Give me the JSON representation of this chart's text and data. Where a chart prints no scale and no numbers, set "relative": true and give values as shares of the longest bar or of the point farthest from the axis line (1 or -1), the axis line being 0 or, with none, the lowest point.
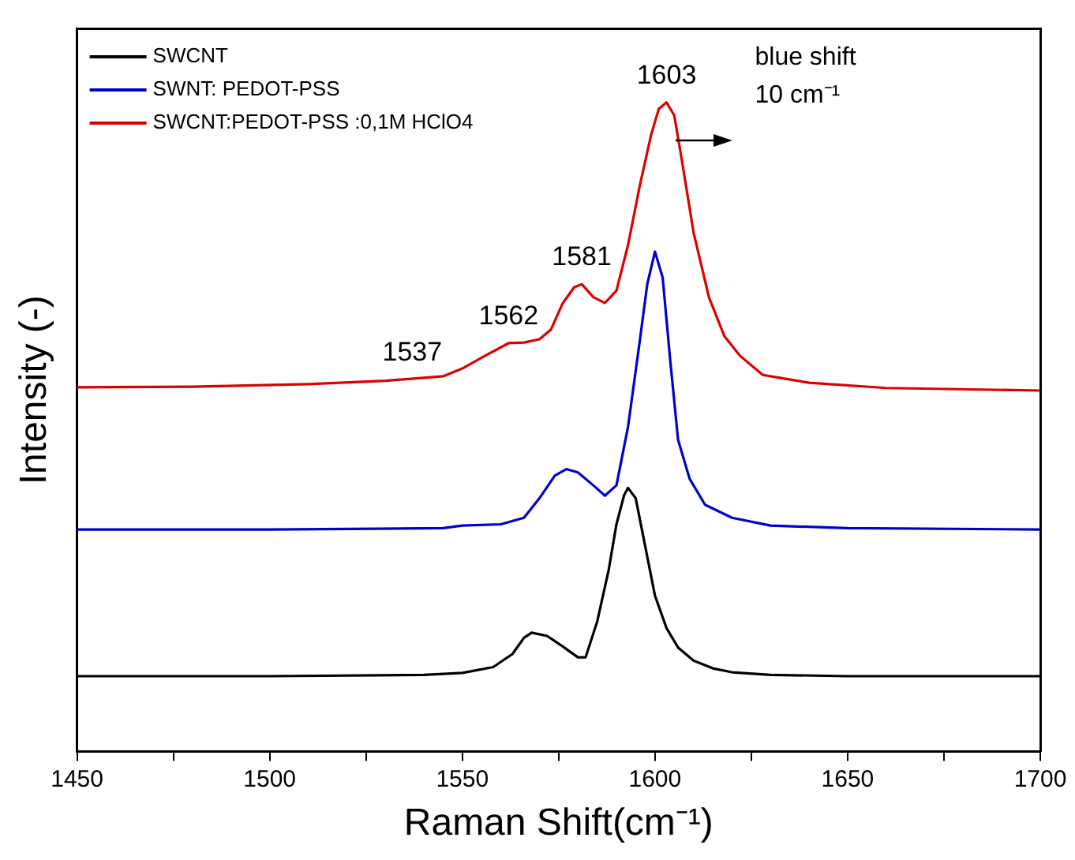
{
  "chart_data": {
    "type": "line",
    "relative": true,
    "xlabel": "Raman Shift(cm⁻¹)",
    "ylabel": "Intensity (-)",
    "xlim": [
      1450,
      1700
    ],
    "xticks": [
      1450,
      {
        "value": 1475,
        "label": null
      },
      1500,
      {
        "value": 1525,
        "label": null
      },
      1550,
      {
        "value": 1575,
        "label": null
      },
      1600,
      {
        "value": 1625,
        "label": null
      },
      1650,
      {
        "value": 1675,
        "label": null
      },
      1700
    ],
    "legend": "top left",
    "grid": false,
    "marker": "none",
    "line_style": "solid",
    "series": [
      {
        "name": "SWCNT",
        "color": "#000000",
        "x": [
          1450,
          1500,
          1540,
          1550,
          1558,
          1563,
          1566,
          1568,
          1572,
          1576,
          1580,
          1582,
          1585,
          1588,
          1590,
          1592,
          1593,
          1595,
          1597,
          1600,
          1603,
          1606,
          1610,
          1615,
          1620,
          1630,
          1650,
          1700
        ],
        "values": [
          0.116,
          0.116,
          0.118,
          0.121,
          0.13,
          0.15,
          0.175,
          0.183,
          0.178,
          0.162,
          0.145,
          0.145,
          0.2,
          0.28,
          0.35,
          0.395,
          0.406,
          0.39,
          0.33,
          0.24,
          0.19,
          0.16,
          0.14,
          0.128,
          0.122,
          0.118,
          0.116,
          0.116
        ]
      },
      {
        "name": "SWNT: PEDOT-PSS",
        "color": "#0000cc",
        "x": [
          1450,
          1500,
          1545,
          1550,
          1560,
          1566,
          1570,
          1574,
          1577,
          1580,
          1584,
          1587,
          1590,
          1593,
          1596,
          1598,
          1600,
          1602,
          1604,
          1606,
          1609,
          1613,
          1620,
          1630,
          1650,
          1700
        ],
        "values": [
          0.342,
          0.342,
          0.344,
          0.348,
          0.35,
          0.36,
          0.39,
          0.425,
          0.435,
          0.43,
          0.41,
          0.394,
          0.41,
          0.5,
          0.63,
          0.72,
          0.77,
          0.73,
          0.6,
          0.48,
          0.42,
          0.38,
          0.36,
          0.348,
          0.344,
          0.342
        ]
      },
      {
        "name": "SWCNT:PEDOT-PSS :0,1M HClO4",
        "color": "#dd0000",
        "x": [
          1450,
          1480,
          1510,
          1530,
          1545,
          1550,
          1556,
          1562,
          1566,
          1570,
          1573,
          1576,
          1579,
          1581,
          1584,
          1587,
          1590,
          1593,
          1596,
          1599,
          1601,
          1603,
          1605,
          1607,
          1610,
          1614,
          1618,
          1622,
          1628,
          1633,
          1640,
          1660,
          1700
        ],
        "values": [
          0.561,
          0.562,
          0.566,
          0.571,
          0.578,
          0.59,
          0.61,
          0.629,
          0.63,
          0.635,
          0.65,
          0.69,
          0.715,
          0.72,
          0.7,
          0.691,
          0.71,
          0.78,
          0.87,
          0.95,
          0.99,
          1.0,
          0.98,
          0.91,
          0.8,
          0.7,
          0.64,
          0.61,
          0.58,
          0.575,
          0.568,
          0.56,
          0.556
        ]
      }
    ],
    "annotations": [
      {
        "text": "1537",
        "x": 1537,
        "y": 0.574
      },
      {
        "text": "1562",
        "x": 1562,
        "y": 0.629
      },
      {
        "text": "1581",
        "x": 1581,
        "y": 0.72
      },
      {
        "text": "1603",
        "x": 1603,
        "y": 1.0
      },
      "blue shift 10 cm⁻¹"
    ]
  }
}
